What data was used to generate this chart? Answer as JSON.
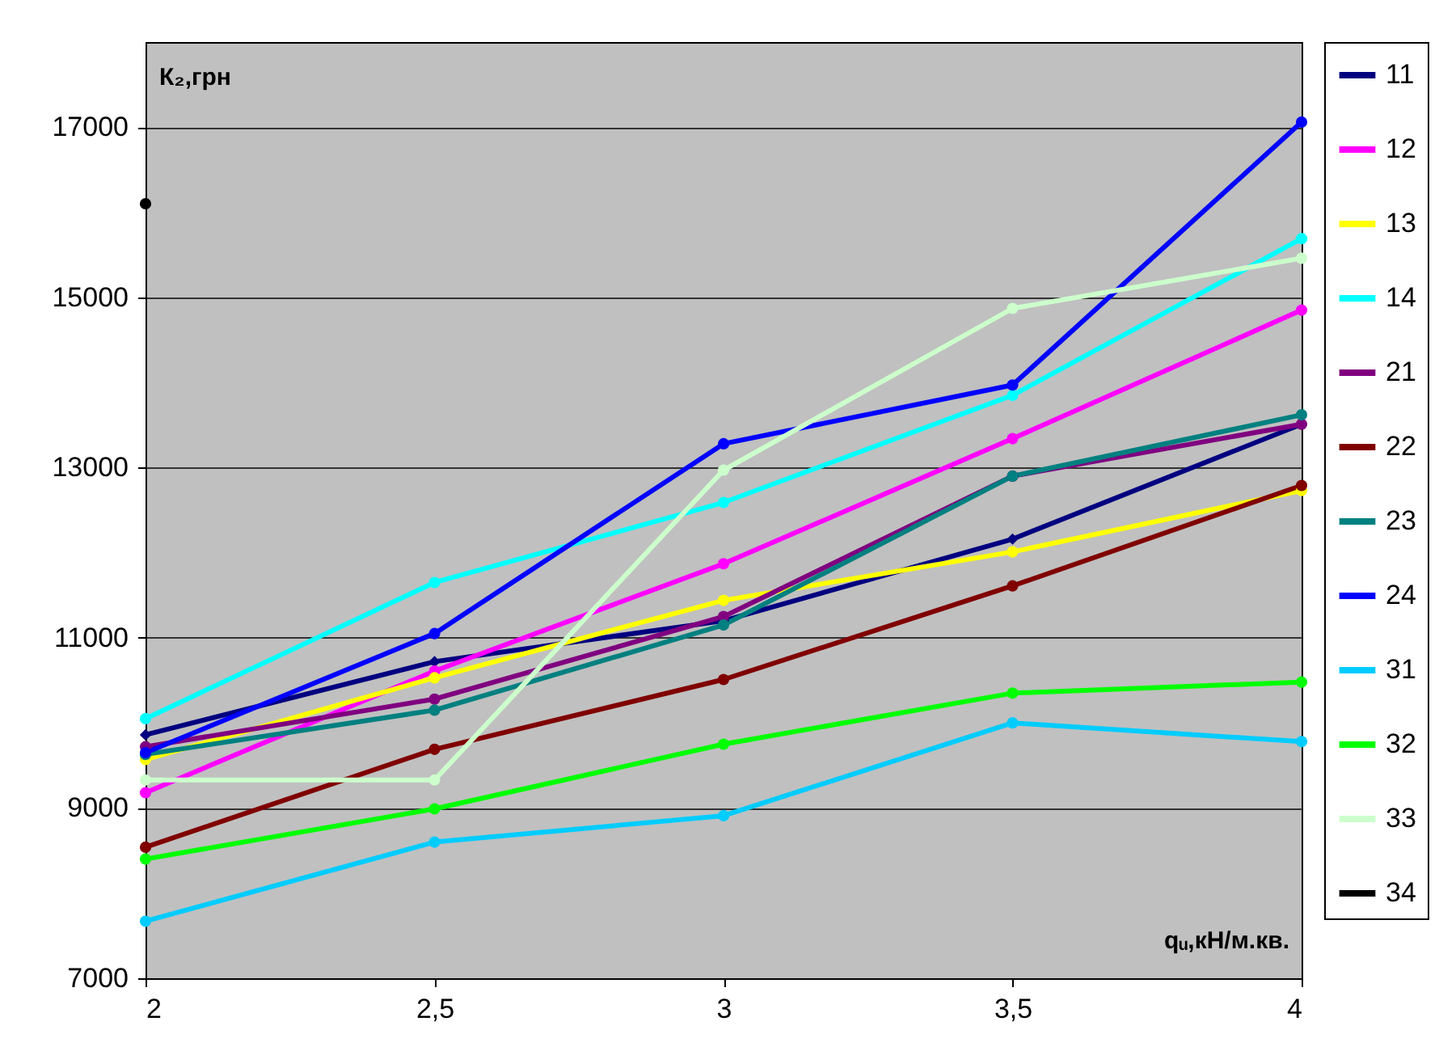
{
  "chart_data": {
    "type": "line",
    "xlabel": "qᵤ,кН/м.кв.",
    "ylabel": "К₂,грн",
    "x": [
      2,
      2.5,
      3,
      3.5,
      4
    ],
    "xlim": [
      2,
      4
    ],
    "xticks": [
      2,
      {
        "value": 2.5,
        "label": "2,5"
      },
      3,
      {
        "value": 3.5,
        "label": "3,5"
      },
      4
    ],
    "ylim": [
      7000,
      18000
    ],
    "yticks": [
      7000,
      9000,
      11000,
      13000,
      15000,
      17000
    ],
    "grid": "y",
    "legend": "right",
    "marker": "circle",
    "line_style": "solid",
    "series": [
      {
        "name": "11",
        "color": "#000080",
        "marker": "diamond",
        "values": [
          9860,
          10720,
          11200,
          12160,
          13510
        ]
      },
      {
        "name": "12",
        "color": "#ff00ff",
        "values": [
          9180,
          10610,
          11870,
          13340,
          14850
        ]
      },
      {
        "name": "13",
        "color": "#ffff00",
        "values": [
          9570,
          10530,
          11440,
          12010,
          12730
        ]
      },
      {
        "name": "14",
        "color": "#00ffff",
        "values": [
          10050,
          11650,
          12590,
          13850,
          15690
        ]
      },
      {
        "name": "21",
        "color": "#800080",
        "values": [
          9720,
          10280,
          11250,
          12900,
          13510
        ]
      },
      {
        "name": "22",
        "color": "#800000",
        "values": [
          8540,
          9690,
          10510,
          11610,
          12790
        ]
      },
      {
        "name": "23",
        "color": "#008080",
        "values": [
          9630,
          10150,
          11150,
          12900,
          13620
        ]
      },
      {
        "name": "24",
        "color": "#0000ff",
        "values": [
          9650,
          11050,
          13280,
          13970,
          17060
        ]
      },
      {
        "name": "31",
        "color": "#00ccff",
        "values": [
          7670,
          8600,
          8910,
          10000,
          9780
        ]
      },
      {
        "name": "32",
        "color": "#00ff00",
        "values": [
          8400,
          8990,
          9750,
          10350,
          10480
        ]
      },
      {
        "name": "33",
        "color": "#ccffcc",
        "values": [
          9330,
          9330,
          12970,
          14870,
          15460
        ]
      },
      {
        "name": "34",
        "color": "#000000",
        "values": [
          16100,
          null,
          null,
          null,
          null
        ]
      }
    ]
  }
}
